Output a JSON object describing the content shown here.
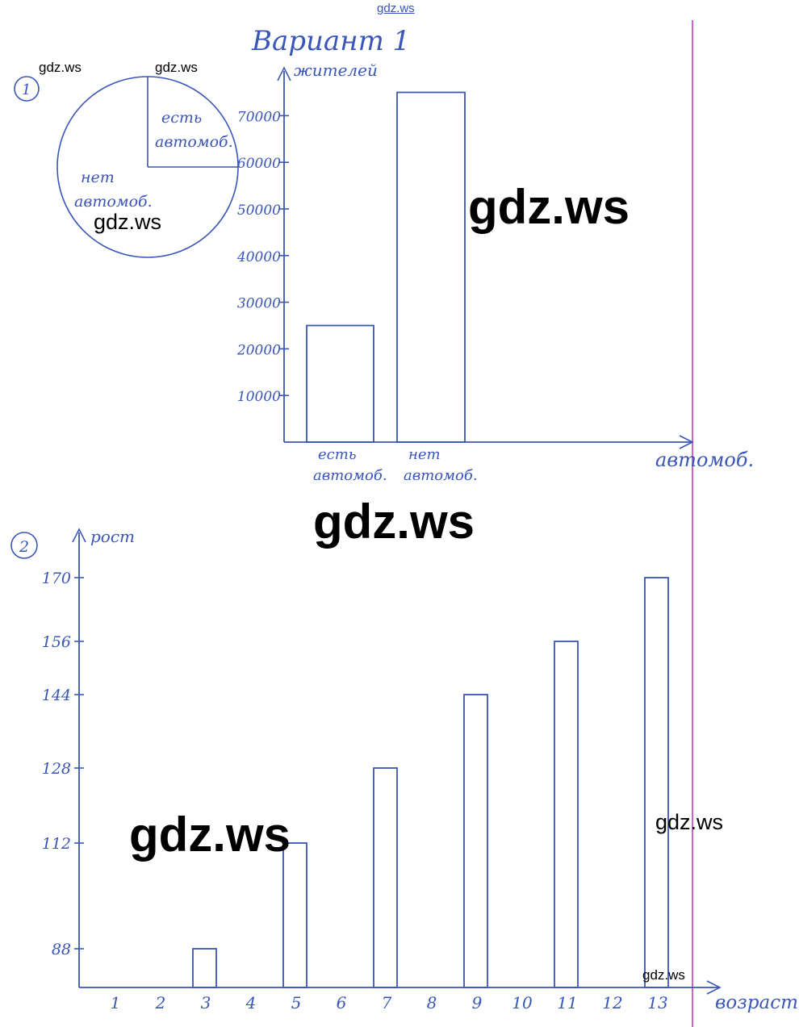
{
  "header": {
    "variant_title": "Вариант 1"
  },
  "watermarks": [
    "gdz.ws",
    "gdz.ws",
    "gdz.ws",
    "gdz.ws",
    "gdz.ws",
    "gdz.ws",
    "gdz.ws",
    "gdz.ws",
    "gdz.ws"
  ],
  "colors": {
    "ink": "#3a56b8",
    "margin_line": "#e05cc8",
    "watermark": "#000000"
  },
  "chart_data": [
    {
      "type": "pie",
      "number": "1",
      "slices": [
        {
          "label_lines": [
            "есть",
            "автомоб."
          ],
          "fraction": 0.25
        },
        {
          "label_lines": [
            "нет",
            "автомоб."
          ],
          "fraction": 0.75
        }
      ]
    },
    {
      "type": "bar",
      "ylabel": "жителей",
      "xlabel": "автомоб.",
      "ylim": [
        0,
        80000
      ],
      "yticks": [
        10000,
        20000,
        30000,
        40000,
        50000,
        60000,
        70000
      ],
      "ytick_labels": [
        "10000",
        "20000",
        "30000",
        "40000",
        "50000",
        "60000",
        "70000"
      ],
      "categories": [
        [
          "есть",
          "автомоб."
        ],
        [
          "нет",
          "автомоб."
        ]
      ],
      "values": [
        25000,
        75000
      ]
    },
    {
      "type": "bar",
      "number": "2",
      "ylabel": "рост",
      "xlabel": "возраст",
      "x": [
        "1",
        "2",
        "3",
        "4",
        "5",
        "6",
        "7",
        "8",
        "9",
        "10",
        "11",
        "12",
        "13"
      ],
      "yticks": [
        88,
        112,
        128,
        144,
        156,
        170
      ],
      "ytick_labels": [
        "88",
        "112",
        "128",
        "144",
        "156",
        "170"
      ],
      "bars": [
        {
          "x": "3",
          "value": 88
        },
        {
          "x": "5",
          "value": 112
        },
        {
          "x": "7",
          "value": 128
        },
        {
          "x": "9",
          "value": 144
        },
        {
          "x": "11",
          "value": 156
        },
        {
          "x": "13",
          "value": 170
        }
      ]
    }
  ]
}
